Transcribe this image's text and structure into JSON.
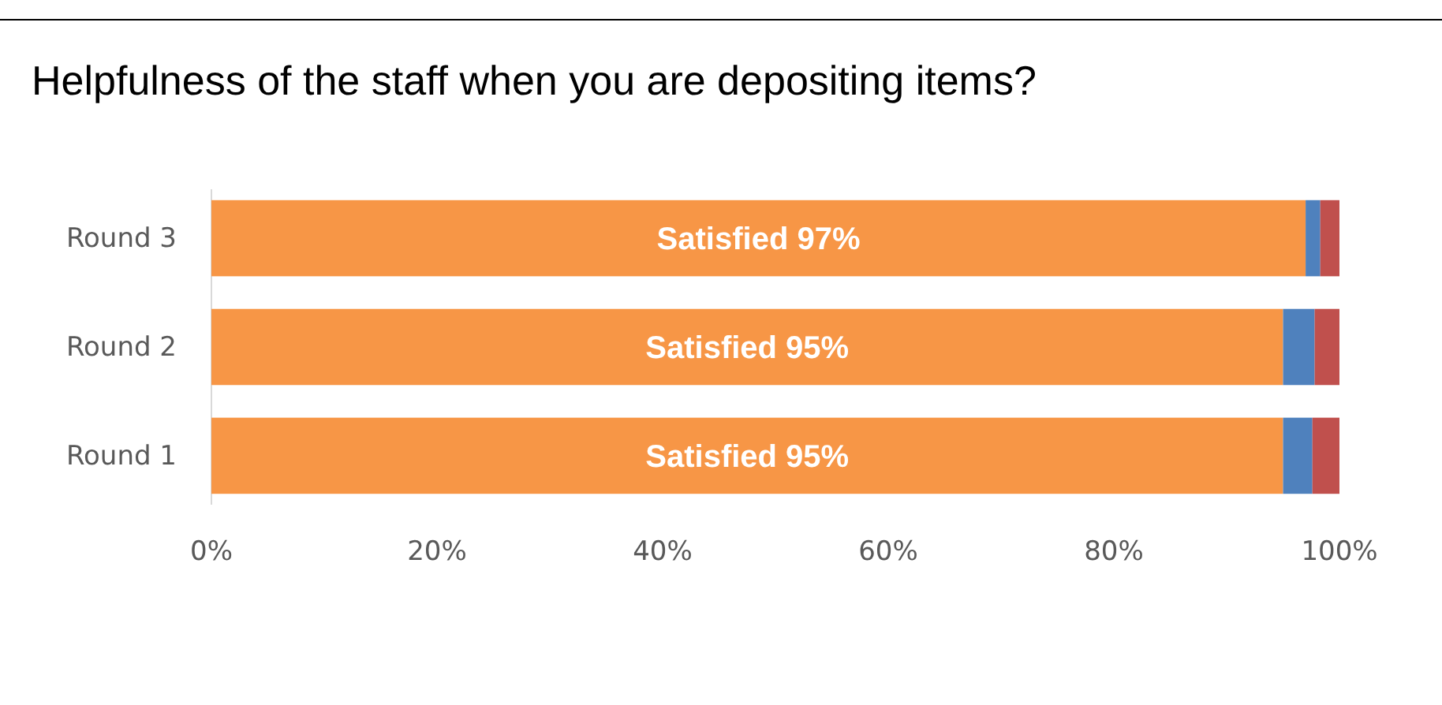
{
  "chart_data": {
    "type": "bar",
    "orientation": "horizontal",
    "stacked": true,
    "title": "Helpfulness of the staff when you are depositing items?",
    "categories": [
      "Round 3",
      "Round 2",
      "Round 1"
    ],
    "series": [
      {
        "color": "#f79646",
        "values": [
          97,
          95,
          95
        ],
        "value_labels": [
          "Satisfied 97%",
          "Satisfied 95%",
          "Satisfied 95%"
        ]
      },
      {
        "color": "#4f81bd",
        "values": [
          1.3,
          2.8,
          2.6
        ]
      },
      {
        "color": "#c0504d",
        "values": [
          1.7,
          2.2,
          2.4
        ]
      }
    ],
    "xlim": [
      0,
      100
    ],
    "xticks": [
      {
        "value": 0,
        "label": "0%"
      },
      {
        "value": 20,
        "label": "20%"
      },
      {
        "value": 40,
        "label": "40%"
      },
      {
        "value": 60,
        "label": "60%"
      },
      {
        "value": 80,
        "label": "80%"
      },
      {
        "value": 100,
        "label": "100%"
      }
    ],
    "grid": false
  }
}
